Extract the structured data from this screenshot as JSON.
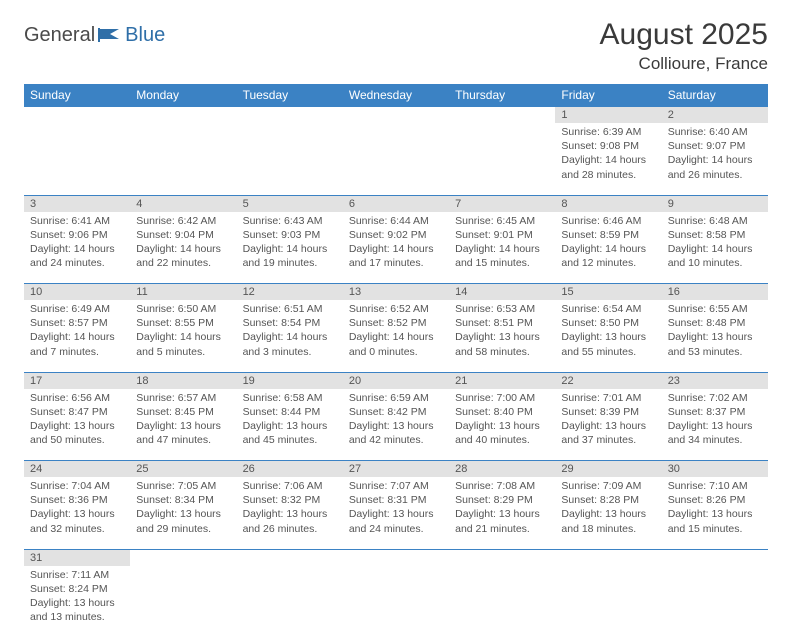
{
  "logo": {
    "part1": "General",
    "part2": "Blue"
  },
  "title": "August 2025",
  "location": "Collioure, France",
  "colors": {
    "header_bg": "#3b82c4",
    "header_text": "#ffffff",
    "daynum_bg": "#e2e2e2",
    "text": "#555555",
    "rule": "#3b82c4"
  },
  "weekdays": [
    "Sunday",
    "Monday",
    "Tuesday",
    "Wednesday",
    "Thursday",
    "Friday",
    "Saturday"
  ],
  "weeks": [
    [
      null,
      null,
      null,
      null,
      null,
      {
        "n": "1",
        "sunrise": "Sunrise: 6:39 AM",
        "sunset": "Sunset: 9:08 PM",
        "day1": "Daylight: 14 hours",
        "day2": "and 28 minutes."
      },
      {
        "n": "2",
        "sunrise": "Sunrise: 6:40 AM",
        "sunset": "Sunset: 9:07 PM",
        "day1": "Daylight: 14 hours",
        "day2": "and 26 minutes."
      }
    ],
    [
      {
        "n": "3",
        "sunrise": "Sunrise: 6:41 AM",
        "sunset": "Sunset: 9:06 PM",
        "day1": "Daylight: 14 hours",
        "day2": "and 24 minutes."
      },
      {
        "n": "4",
        "sunrise": "Sunrise: 6:42 AM",
        "sunset": "Sunset: 9:04 PM",
        "day1": "Daylight: 14 hours",
        "day2": "and 22 minutes."
      },
      {
        "n": "5",
        "sunrise": "Sunrise: 6:43 AM",
        "sunset": "Sunset: 9:03 PM",
        "day1": "Daylight: 14 hours",
        "day2": "and 19 minutes."
      },
      {
        "n": "6",
        "sunrise": "Sunrise: 6:44 AM",
        "sunset": "Sunset: 9:02 PM",
        "day1": "Daylight: 14 hours",
        "day2": "and 17 minutes."
      },
      {
        "n": "7",
        "sunrise": "Sunrise: 6:45 AM",
        "sunset": "Sunset: 9:01 PM",
        "day1": "Daylight: 14 hours",
        "day2": "and 15 minutes."
      },
      {
        "n": "8",
        "sunrise": "Sunrise: 6:46 AM",
        "sunset": "Sunset: 8:59 PM",
        "day1": "Daylight: 14 hours",
        "day2": "and 12 minutes."
      },
      {
        "n": "9",
        "sunrise": "Sunrise: 6:48 AM",
        "sunset": "Sunset: 8:58 PM",
        "day1": "Daylight: 14 hours",
        "day2": "and 10 minutes."
      }
    ],
    [
      {
        "n": "10",
        "sunrise": "Sunrise: 6:49 AM",
        "sunset": "Sunset: 8:57 PM",
        "day1": "Daylight: 14 hours",
        "day2": "and 7 minutes."
      },
      {
        "n": "11",
        "sunrise": "Sunrise: 6:50 AM",
        "sunset": "Sunset: 8:55 PM",
        "day1": "Daylight: 14 hours",
        "day2": "and 5 minutes."
      },
      {
        "n": "12",
        "sunrise": "Sunrise: 6:51 AM",
        "sunset": "Sunset: 8:54 PM",
        "day1": "Daylight: 14 hours",
        "day2": "and 3 minutes."
      },
      {
        "n": "13",
        "sunrise": "Sunrise: 6:52 AM",
        "sunset": "Sunset: 8:52 PM",
        "day1": "Daylight: 14 hours",
        "day2": "and 0 minutes."
      },
      {
        "n": "14",
        "sunrise": "Sunrise: 6:53 AM",
        "sunset": "Sunset: 8:51 PM",
        "day1": "Daylight: 13 hours",
        "day2": "and 58 minutes."
      },
      {
        "n": "15",
        "sunrise": "Sunrise: 6:54 AM",
        "sunset": "Sunset: 8:50 PM",
        "day1": "Daylight: 13 hours",
        "day2": "and 55 minutes."
      },
      {
        "n": "16",
        "sunrise": "Sunrise: 6:55 AM",
        "sunset": "Sunset: 8:48 PM",
        "day1": "Daylight: 13 hours",
        "day2": "and 53 minutes."
      }
    ],
    [
      {
        "n": "17",
        "sunrise": "Sunrise: 6:56 AM",
        "sunset": "Sunset: 8:47 PM",
        "day1": "Daylight: 13 hours",
        "day2": "and 50 minutes."
      },
      {
        "n": "18",
        "sunrise": "Sunrise: 6:57 AM",
        "sunset": "Sunset: 8:45 PM",
        "day1": "Daylight: 13 hours",
        "day2": "and 47 minutes."
      },
      {
        "n": "19",
        "sunrise": "Sunrise: 6:58 AM",
        "sunset": "Sunset: 8:44 PM",
        "day1": "Daylight: 13 hours",
        "day2": "and 45 minutes."
      },
      {
        "n": "20",
        "sunrise": "Sunrise: 6:59 AM",
        "sunset": "Sunset: 8:42 PM",
        "day1": "Daylight: 13 hours",
        "day2": "and 42 minutes."
      },
      {
        "n": "21",
        "sunrise": "Sunrise: 7:00 AM",
        "sunset": "Sunset: 8:40 PM",
        "day1": "Daylight: 13 hours",
        "day2": "and 40 minutes."
      },
      {
        "n": "22",
        "sunrise": "Sunrise: 7:01 AM",
        "sunset": "Sunset: 8:39 PM",
        "day1": "Daylight: 13 hours",
        "day2": "and 37 minutes."
      },
      {
        "n": "23",
        "sunrise": "Sunrise: 7:02 AM",
        "sunset": "Sunset: 8:37 PM",
        "day1": "Daylight: 13 hours",
        "day2": "and 34 minutes."
      }
    ],
    [
      {
        "n": "24",
        "sunrise": "Sunrise: 7:04 AM",
        "sunset": "Sunset: 8:36 PM",
        "day1": "Daylight: 13 hours",
        "day2": "and 32 minutes."
      },
      {
        "n": "25",
        "sunrise": "Sunrise: 7:05 AM",
        "sunset": "Sunset: 8:34 PM",
        "day1": "Daylight: 13 hours",
        "day2": "and 29 minutes."
      },
      {
        "n": "26",
        "sunrise": "Sunrise: 7:06 AM",
        "sunset": "Sunset: 8:32 PM",
        "day1": "Daylight: 13 hours",
        "day2": "and 26 minutes."
      },
      {
        "n": "27",
        "sunrise": "Sunrise: 7:07 AM",
        "sunset": "Sunset: 8:31 PM",
        "day1": "Daylight: 13 hours",
        "day2": "and 24 minutes."
      },
      {
        "n": "28",
        "sunrise": "Sunrise: 7:08 AM",
        "sunset": "Sunset: 8:29 PM",
        "day1": "Daylight: 13 hours",
        "day2": "and 21 minutes."
      },
      {
        "n": "29",
        "sunrise": "Sunrise: 7:09 AM",
        "sunset": "Sunset: 8:28 PM",
        "day1": "Daylight: 13 hours",
        "day2": "and 18 minutes."
      },
      {
        "n": "30",
        "sunrise": "Sunrise: 7:10 AM",
        "sunset": "Sunset: 8:26 PM",
        "day1": "Daylight: 13 hours",
        "day2": "and 15 minutes."
      }
    ],
    [
      {
        "n": "31",
        "sunrise": "Sunrise: 7:11 AM",
        "sunset": "Sunset: 8:24 PM",
        "day1": "Daylight: 13 hours",
        "day2": "and 13 minutes."
      },
      null,
      null,
      null,
      null,
      null,
      null
    ]
  ]
}
